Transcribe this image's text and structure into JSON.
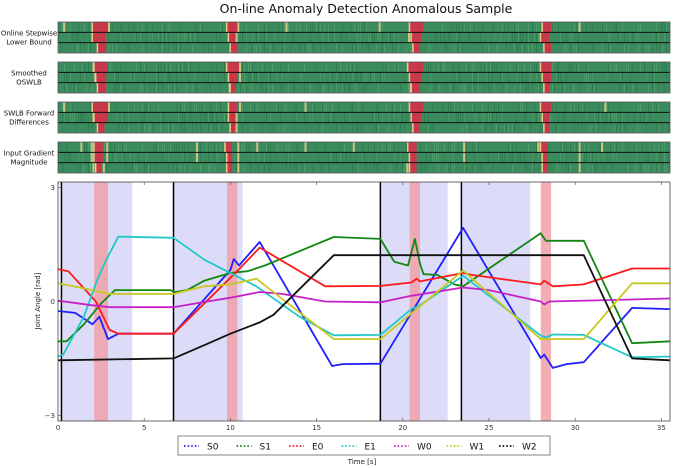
{
  "chart_data": {
    "type": "line",
    "title": "On-line Anomaly Detection Anomalous Sample",
    "xlabel": "Time [s]",
    "ylabel": "Joint Angle [rad]",
    "xlim": [
      0,
      35.5
    ],
    "ylim": [
      -3.15,
      3.15
    ],
    "xticks": [
      0,
      5,
      10,
      15,
      20,
      25,
      30,
      35
    ],
    "xtick_labels": [
      "0",
      "5",
      "10",
      "15",
      "20",
      "25",
      "30",
      "35"
    ],
    "yticks": [
      3,
      0,
      -3
    ],
    "ytick_labels": [
      "3",
      "0",
      "−3"
    ],
    "grid": false,
    "legend_placement": "bottom-center",
    "colors": {
      "segment_shade": "#dcdcf8",
      "anomaly_shade": "#f0a0a8",
      "heat_normal": "#3a8c5e",
      "heat_anomaly": "#c8384a",
      "heat_mild": "#e8d08c"
    },
    "segment_spans": [
      [
        0.2,
        4.3
      ],
      [
        6.7,
        10.7
      ],
      [
        18.7,
        22.6
      ],
      [
        23.4,
        27.4
      ]
    ],
    "anomaly_spans": [
      [
        2.1,
        2.9
      ],
      [
        9.8,
        10.4
      ],
      [
        20.4,
        21.0
      ],
      [
        28.0,
        28.6
      ]
    ],
    "segment_boundaries": [
      0.2,
      6.7,
      18.7,
      23.4
    ],
    "series": [
      {
        "name": "S0",
        "color": "#2020ff",
        "points": [
          [
            0,
            -0.25
          ],
          [
            1,
            -0.3
          ],
          [
            2,
            -0.6
          ],
          [
            2.4,
            -0.4
          ],
          [
            2.9,
            -0.99
          ],
          [
            3.5,
            -0.85
          ],
          [
            6.7,
            -0.85
          ],
          [
            10,
            0.83
          ],
          [
            10.2,
            1.12
          ],
          [
            10.5,
            0.95
          ],
          [
            11.7,
            1.57
          ],
          [
            15.9,
            -1.7
          ],
          [
            16.5,
            -1.65
          ],
          [
            18.7,
            -1.64
          ],
          [
            23.5,
            1.94
          ],
          [
            28,
            -1.49
          ],
          [
            28.2,
            -1.4
          ],
          [
            28.7,
            -1.75
          ],
          [
            29.5,
            -1.65
          ],
          [
            30.5,
            -1.6
          ],
          [
            33.3,
            -0.17
          ],
          [
            35.5,
            -0.2
          ]
        ]
      },
      {
        "name": "S1",
        "color": "#128812",
        "points": [
          [
            0,
            -1.05
          ],
          [
            0.5,
            -1.05
          ],
          [
            1.5,
            -0.6
          ],
          [
            2.5,
            -0.05
          ],
          [
            3.3,
            0.3
          ],
          [
            6.5,
            0.3
          ],
          [
            6.8,
            0.25
          ],
          [
            7.5,
            0.3
          ],
          [
            8.5,
            0.55
          ],
          [
            10,
            0.75
          ],
          [
            11,
            0.8
          ],
          [
            12,
            0.95
          ],
          [
            16,
            1.7
          ],
          [
            18.7,
            1.65
          ],
          [
            19.5,
            1.05
          ],
          [
            20.3,
            0.95
          ],
          [
            20.7,
            1.65
          ],
          [
            21,
            1.0
          ],
          [
            21.2,
            0.72
          ],
          [
            22,
            0.7
          ],
          [
            23,
            0.45
          ],
          [
            23.5,
            0.4
          ],
          [
            28,
            1.8
          ],
          [
            28.3,
            1.6
          ],
          [
            30.5,
            1.6
          ],
          [
            33.3,
            -1.1
          ],
          [
            35.5,
            -1.05
          ]
        ]
      },
      {
        "name": "E0",
        "color": "#ff1a1a",
        "points": [
          [
            0,
            0.85
          ],
          [
            0.6,
            0.8
          ],
          [
            2.2,
            0
          ],
          [
            3,
            -0.75
          ],
          [
            3.5,
            -0.85
          ],
          [
            6.7,
            -0.85
          ],
          [
            10.5,
            0.85
          ],
          [
            11.7,
            1.42
          ],
          [
            15.5,
            0.4
          ],
          [
            18.7,
            0.41
          ],
          [
            20.5,
            0.5
          ],
          [
            20.8,
            0.6
          ],
          [
            21,
            0.53
          ],
          [
            23.5,
            0.75
          ],
          [
            24,
            0.7
          ],
          [
            28,
            0.45
          ],
          [
            28.2,
            0.55
          ],
          [
            28.7,
            0.4
          ],
          [
            30.5,
            0.45
          ],
          [
            33.3,
            0.87
          ],
          [
            35.5,
            0.87
          ]
        ]
      },
      {
        "name": "E1",
        "color": "#20c8c8",
        "points": [
          [
            0,
            -1.45
          ],
          [
            0.3,
            -1.4
          ],
          [
            1.5,
            -0.4
          ],
          [
            2.3,
            0.6
          ],
          [
            2.8,
            1.1
          ],
          [
            3.5,
            1.71
          ],
          [
            6.7,
            1.68
          ],
          [
            8.5,
            1.1
          ],
          [
            11.5,
            0.4
          ],
          [
            14,
            -0.4
          ],
          [
            16,
            -0.89
          ],
          [
            18.7,
            -0.88
          ],
          [
            20.5,
            -0.2
          ],
          [
            21,
            -0.1
          ],
          [
            23.5,
            0.68
          ],
          [
            28,
            -0.9
          ],
          [
            28.3,
            -0.95
          ],
          [
            28.7,
            -0.87
          ],
          [
            30.5,
            -0.88
          ],
          [
            33.3,
            -1.47
          ],
          [
            35.5,
            -1.45
          ]
        ]
      },
      {
        "name": "W0",
        "color": "#c820c8",
        "points": [
          [
            0,
            0.02
          ],
          [
            2,
            -0.1
          ],
          [
            3,
            -0.15
          ],
          [
            6.7,
            -0.15
          ],
          [
            8,
            -0.05
          ],
          [
            10,
            0.1
          ],
          [
            11.7,
            0.25
          ],
          [
            13,
            0.2
          ],
          [
            15.5,
            0.0
          ],
          [
            18.7,
            -0.02
          ],
          [
            20.5,
            0.15
          ],
          [
            23.5,
            0.37
          ],
          [
            25,
            0.3
          ],
          [
            28,
            0.0
          ],
          [
            28.2,
            -0.08
          ],
          [
            28.5,
            0.0
          ],
          [
            33,
            0.05
          ],
          [
            35.5,
            0.08
          ]
        ]
      },
      {
        "name": "W1",
        "color": "#c8c820",
        "points": [
          [
            0,
            0.48
          ],
          [
            2,
            0.3
          ],
          [
            3,
            0.2
          ],
          [
            6.7,
            0.2
          ],
          [
            8.5,
            0.4
          ],
          [
            10,
            0.45
          ],
          [
            11.5,
            0.6
          ],
          [
            16,
            -0.99
          ],
          [
            18.7,
            -0.99
          ],
          [
            23.5,
            0.82
          ],
          [
            28,
            -0.99
          ],
          [
            30.5,
            -0.99
          ],
          [
            33.3,
            0.48
          ],
          [
            35.5,
            0.48
          ]
        ]
      },
      {
        "name": "W2",
        "color": "#111111",
        "points": [
          [
            0,
            -1.55
          ],
          [
            6.7,
            -1.5
          ],
          [
            8.5,
            -1.15
          ],
          [
            10,
            -0.85
          ],
          [
            11.7,
            -0.55
          ],
          [
            12.5,
            -0.35
          ],
          [
            16,
            1.22
          ],
          [
            30.5,
            1.22
          ],
          [
            33.3,
            -1.5
          ],
          [
            35.5,
            -1.55
          ]
        ]
      }
    ],
    "heatmaps": [
      {
        "label": [
          "Online Stepwise",
          "Lower Bound"
        ],
        "rows": [
          {
            "anomaly": [
              [
                2.0,
                2.9
              ],
              [
                9.8,
                10.4
              ],
              [
                20.4,
                21.2
              ],
              [
                28.1,
                28.6
              ]
            ],
            "mild": [
              0.3,
              2.9,
              10.4,
              13.2,
              18.6,
              30.2
            ]
          },
          {
            "anomaly": [
              [
                2.0,
                2.8
              ],
              [
                9.9,
                10.3
              ],
              [
                20.5,
                21.1
              ],
              [
                28.0,
                28.5
              ]
            ],
            "mild": [
              10.3,
              20.3
            ]
          },
          {
            "anomaly": [
              [
                2.3,
                2.8
              ],
              [
                10.0,
                10.4
              ],
              [
                20.6,
                21.0
              ],
              [
                28.2,
                28.6
              ]
            ],
            "mild": []
          }
        ]
      },
      {
        "label": [
          "Smoothed",
          "OSWLB"
        ],
        "rows": [
          {
            "anomaly": [
              [
                2.1,
                2.9
              ],
              [
                9.8,
                10.5
              ],
              [
                20.3,
                21.2
              ],
              [
                28.0,
                28.6
              ]
            ],
            "mild": [
              2.0,
              10.5
            ]
          },
          {
            "anomaly": [
              [
                2.2,
                2.8
              ],
              [
                9.9,
                10.4
              ],
              [
                20.4,
                21.1
              ],
              [
                28.1,
                28.6
              ]
            ],
            "mild": [
              2.1,
              10.5
            ]
          },
          {
            "anomaly": [
              [
                2.3,
                2.8
              ],
              [
                10.0,
                10.3
              ],
              [
                20.5,
                21.0
              ],
              [
                28.2,
                28.5
              ]
            ],
            "mild": [
              9.9,
              20.4
            ]
          }
        ]
      },
      {
        "label": [
          "SWLB Forward",
          "Differences"
        ],
        "rows": [
          {
            "anomaly": [
              [
                2.0,
                2.9
              ],
              [
                9.9,
                10.4
              ],
              [
                20.4,
                21.2
              ],
              [
                28.0,
                28.6
              ]
            ],
            "mild": [
              0.3,
              2.9,
              10.1,
              10.5,
              14.3,
              31.7
            ]
          },
          {
            "anomaly": [
              [
                2.1,
                2.9
              ],
              [
                9.9,
                10.3
              ],
              [
                20.5,
                21.1
              ],
              [
                28.1,
                28.5
              ]
            ],
            "mild": [
              2.0,
              10.3
            ]
          },
          {
            "anomaly": [
              [
                2.3,
                2.7
              ],
              [
                10.0,
                10.3
              ],
              [
                20.6,
                21.0
              ],
              [
                28.2,
                28.5
              ]
            ],
            "mild": [
              10.3
            ]
          }
        ]
      },
      {
        "label": [
          "Input Gradient",
          "Magnitude"
        ],
        "rows": [
          {
            "anomaly": [
              [
                2.1,
                2.6
              ],
              [
                9.7,
                10.1
              ],
              [
                20.3,
                20.8
              ],
              [
                28.0,
                28.4
              ]
            ],
            "mild": [
              1.3,
              1.9,
              2.8,
              8.0,
              10.4,
              11.5,
              14.3,
              17.1,
              23.5,
              27.8,
              30.2,
              31.5
            ]
          },
          {
            "anomaly": [
              [
                2.1,
                2.6
              ],
              [
                9.8,
                10.1
              ],
              [
                20.4,
                20.8
              ],
              [
                28.1,
                28.4
              ]
            ],
            "mild": [
              1.9,
              2.8,
              8.0,
              10.4,
              23.5,
              30.2
            ]
          },
          {
            "anomaly": [
              [
                2.2,
                2.5
              ],
              [
                9.8,
                10.1
              ],
              [
                20.4,
                20.8
              ],
              [
                28.1,
                28.4
              ]
            ],
            "mild": [
              2.0,
              2.6,
              10.4,
              20.2,
              30.2
            ]
          }
        ]
      }
    ]
  }
}
